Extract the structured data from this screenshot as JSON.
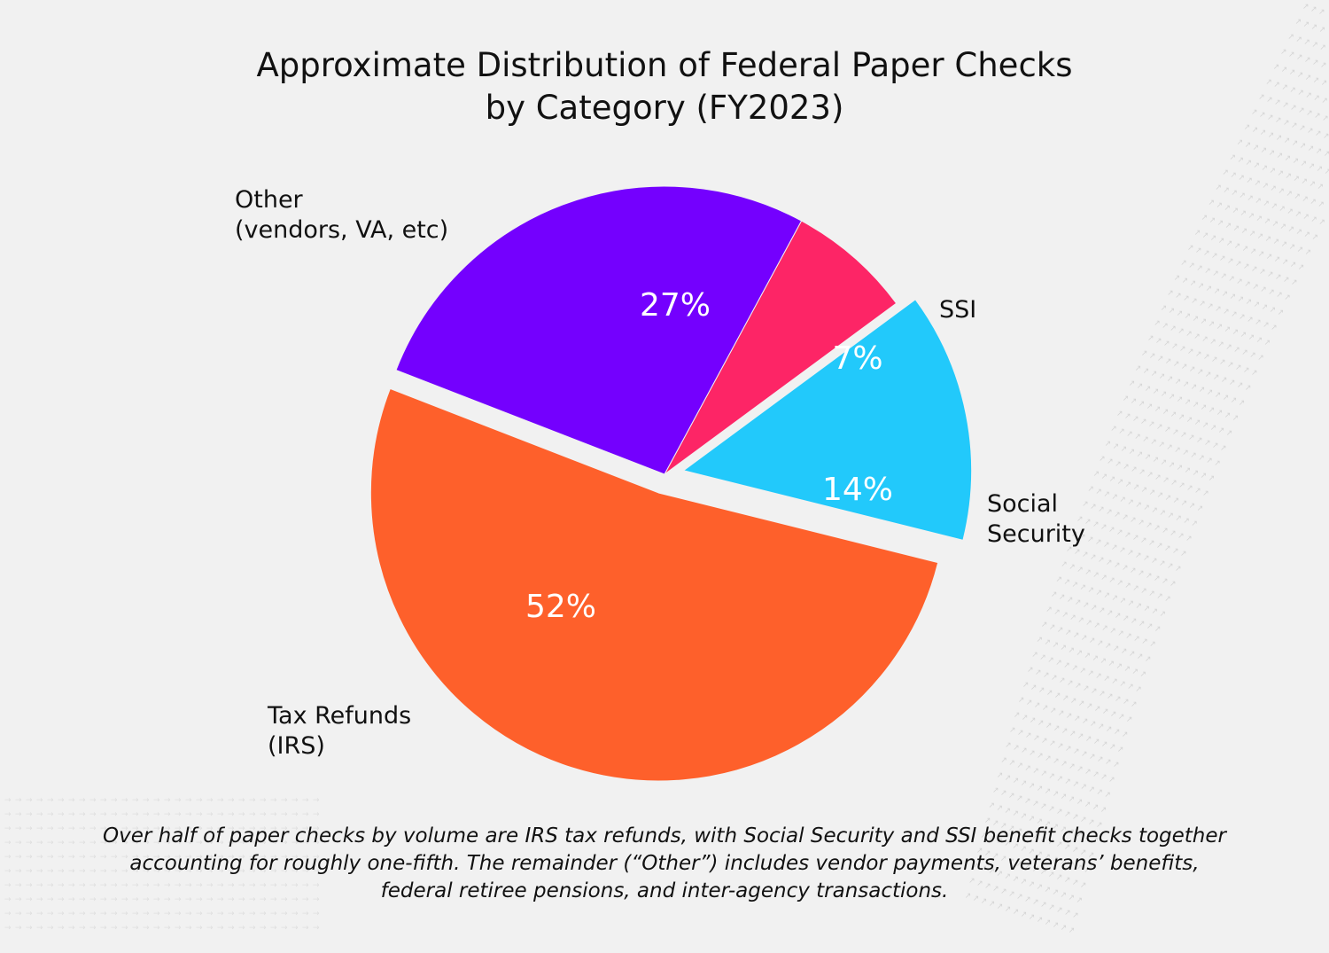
{
  "chart_data": {
    "type": "pie",
    "title": [
      "Approximate Distribution of Federal Paper Checks",
      "by Category (FY2023)"
    ],
    "slices": [
      {
        "label": [
          "Social",
          "Security"
        ],
        "value": 14,
        "value_label": "14%",
        "color": "#22c9fb",
        "exploded": true
      },
      {
        "label": [
          "SSI"
        ],
        "value": 7,
        "value_label": "7%",
        "color": "#fd2566",
        "exploded": false
      },
      {
        "label": [
          "Other",
          "(vendors, VA, etc)"
        ],
        "value": 27,
        "value_label": "27%",
        "color": "#7400fe",
        "exploded": false
      },
      {
        "label": [
          "Tax Refunds",
          "(IRS)"
        ],
        "value": 52,
        "value_label": "52%",
        "color": "#fe602b",
        "exploded": true
      }
    ],
    "start_angle_deg": -14,
    "direction": "counterclockwise",
    "legend": "none"
  },
  "caption": [
    "Over half of paper checks by volume are IRS tax refunds, with Social Security and SSI benefit checks together",
    "accounting for roughly one-fifth. The remainder (“Other”) includes vendor payments, veterans’ benefits,",
    "federal retiree pensions, and inter-agency transactions."
  ],
  "colors": {
    "background": "#f1f1f1",
    "text": "#111111",
    "value_text": "#ffffff"
  }
}
